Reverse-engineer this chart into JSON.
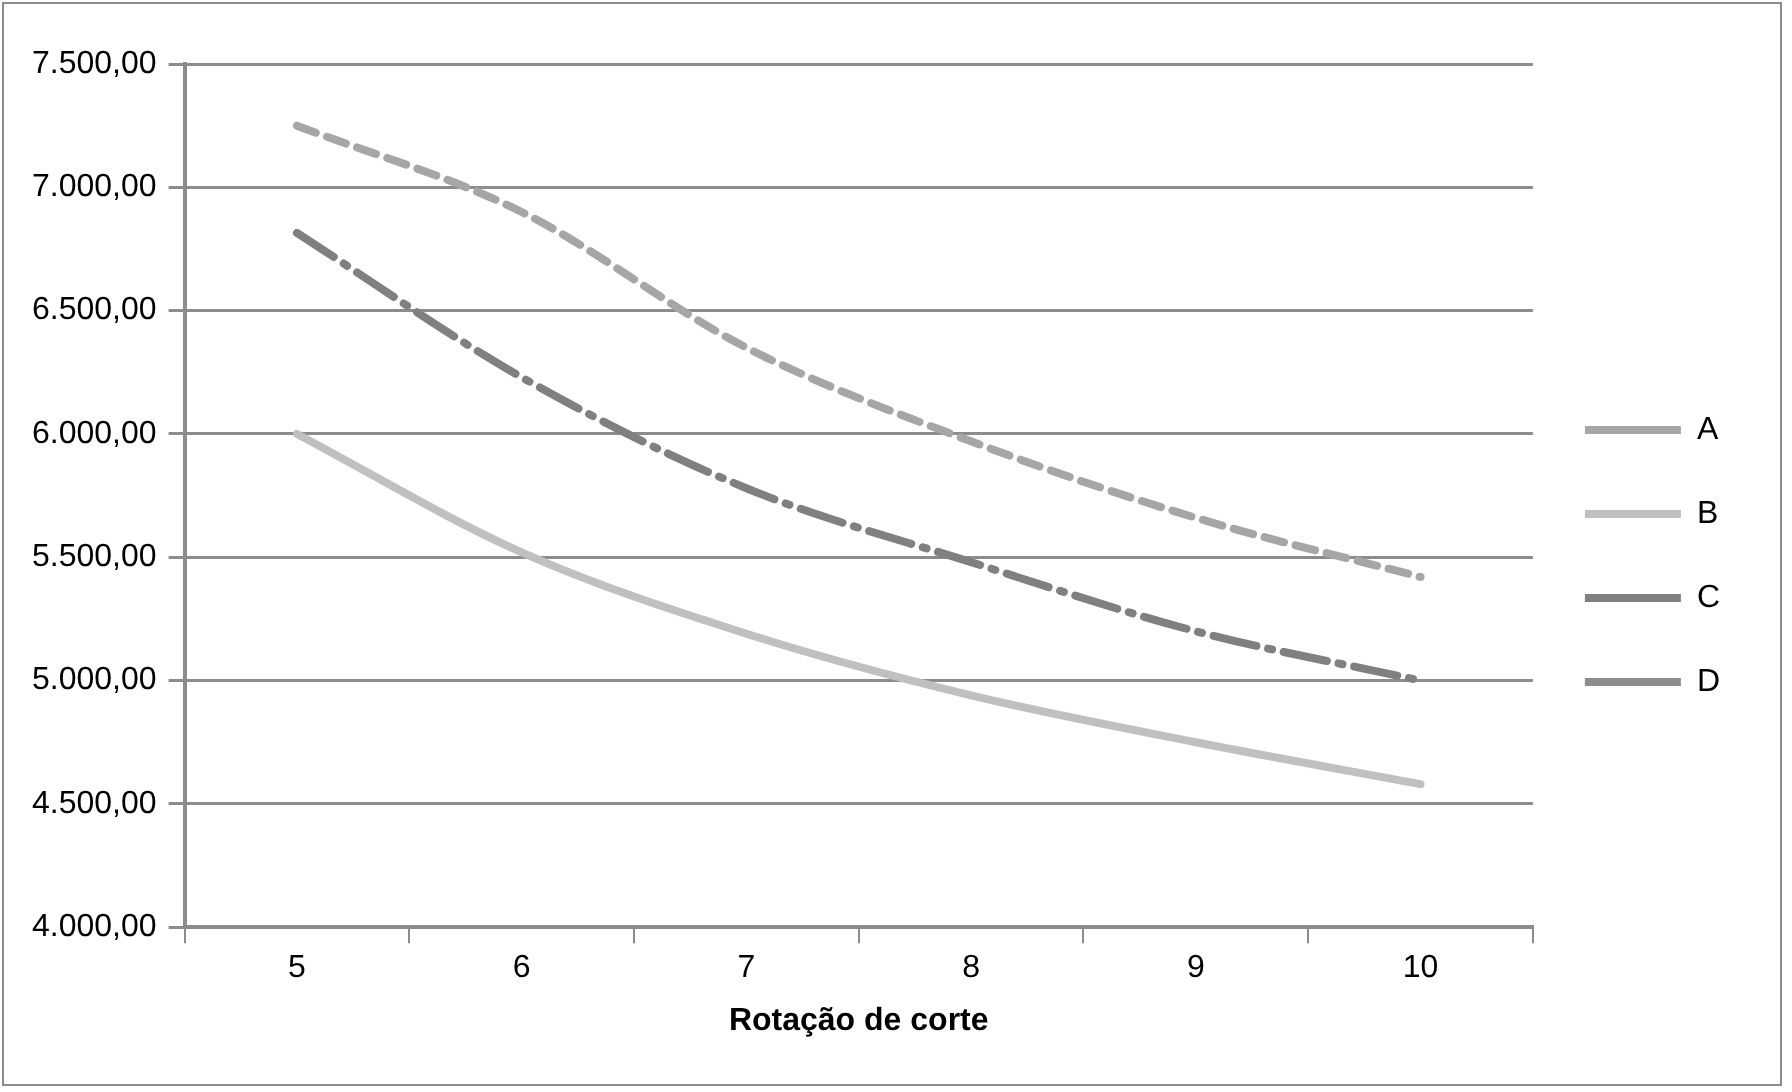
{
  "chart_data": {
    "type": "line",
    "xlabel": "Rotação de corte",
    "categories": [
      "5",
      "6",
      "7",
      "8",
      "9",
      "10"
    ],
    "series": [
      {
        "name": "A",
        "color": "#a6a6a6",
        "line_style": "dashed",
        "values": [
          7250,
          6900,
          6350,
          5970,
          5660,
          5420
        ]
      },
      {
        "name": "B",
        "color": "#c0c0c0",
        "line_style": "solid",
        "values": [
          6000,
          5520,
          5190,
          4940,
          4750,
          4580
        ]
      },
      {
        "name": "C",
        "color": "#808080",
        "line_style": "dashdot",
        "values": [
          6815,
          6230,
          5780,
          5480,
          5200,
          5000
        ]
      },
      {
        "name": "D",
        "color": "#8c8c8c",
        "line_style": "dotted",
        "values": [
          null,
          null,
          null,
          null,
          null,
          null
        ]
      }
    ],
    "ylim": [
      4000,
      7500
    ],
    "yticks": [
      {
        "value": 4000,
        "label": "4.000,00"
      },
      {
        "value": 4500,
        "label": "4.500,00"
      },
      {
        "value": 5000,
        "label": "5.000,00"
      },
      {
        "value": 5500,
        "label": "5.500,00"
      },
      {
        "value": 6000,
        "label": "6.000,00"
      },
      {
        "value": 6500,
        "label": "6.500,00"
      },
      {
        "value": 7000,
        "label": "7.000,00"
      },
      {
        "value": 7500,
        "label": "7.500,00"
      }
    ],
    "grid": "y",
    "legend": "right",
    "marker": "none"
  }
}
